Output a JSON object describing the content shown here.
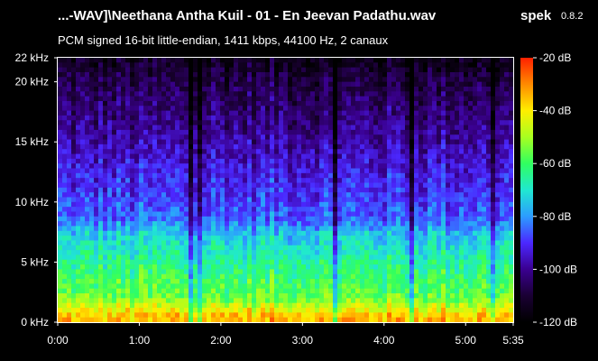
{
  "header": {
    "title": "...-WAV]\\Neethana Antha Kuil - 01 - En Jeevan Padathu.wav",
    "app_name": "spek",
    "app_version": "0.8.2",
    "subtitle": "PCM signed 16-bit little-endian, 1411 kbps, 44100 Hz, 2 canaux"
  },
  "chart_data": {
    "type": "heatmap",
    "y_axis": {
      "unit": "kHz",
      "range": [
        0,
        22
      ],
      "ticks": [
        {
          "value": 0,
          "label": "0 kHz"
        },
        {
          "value": 5,
          "label": "5 kHz"
        },
        {
          "value": 10,
          "label": "10 kHz"
        },
        {
          "value": 15,
          "label": "15 kHz"
        },
        {
          "value": 20,
          "label": "20 kHz"
        },
        {
          "value": 22,
          "label": "22 kHz"
        }
      ]
    },
    "x_axis": {
      "unit": "seconds",
      "range": [
        0,
        335
      ],
      "ticks": [
        {
          "value": 0,
          "label": "0:00"
        },
        {
          "value": 60,
          "label": "1:00"
        },
        {
          "value": 120,
          "label": "2:00"
        },
        {
          "value": 180,
          "label": "3:00"
        },
        {
          "value": 240,
          "label": "4:00"
        },
        {
          "value": 300,
          "label": "5:00"
        },
        {
          "value": 335,
          "label": "5:35"
        }
      ]
    },
    "colorbar": {
      "unit": "dB",
      "range": [
        -120,
        -20
      ],
      "ticks": [
        {
          "value": -20,
          "label": "-20 dB"
        },
        {
          "value": -40,
          "label": "-40 dB"
        },
        {
          "value": -60,
          "label": "-60 dB"
        },
        {
          "value": -80,
          "label": "-80 dB"
        },
        {
          "value": -100,
          "label": "-100 dB"
        },
        {
          "value": -120,
          "label": "-120 dB"
        }
      ],
      "colors": [
        "#000000",
        "#1a0033",
        "#3a0090",
        "#4b28ff",
        "#2c9cff",
        "#20e8d0",
        "#30ff60",
        "#a8ff20",
        "#ffee00",
        "#ff8a00",
        "#ff2000"
      ]
    },
    "spectral_profile": {
      "description_levels_db": [
        {
          "freq_khz": 0.5,
          "db": -35
        },
        {
          "freq_khz": 2,
          "db": -55
        },
        {
          "freq_khz": 5,
          "db": -65
        },
        {
          "freq_khz": 7.5,
          "db": -75
        },
        {
          "freq_khz": 8.5,
          "db": -85
        },
        {
          "freq_khz": 12,
          "db": -92
        },
        {
          "freq_khz": 16,
          "db": -100
        },
        {
          "freq_khz": 20,
          "db": -108
        },
        {
          "freq_khz": 22,
          "db": -115
        }
      ]
    }
  }
}
